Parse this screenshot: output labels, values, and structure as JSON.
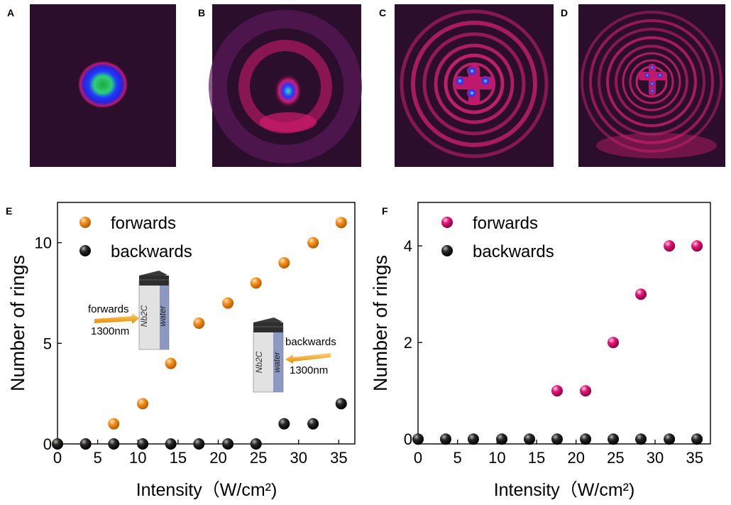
{
  "panels": {
    "A": {
      "label": "A"
    },
    "B": {
      "label": "B"
    },
    "C": {
      "label": "C"
    },
    "D": {
      "label": "D"
    }
  },
  "colors": {
    "forwards_E": "#f7931e",
    "backwards": "#1a1a1a",
    "forwards_F": "#e5197a",
    "beam_bg": "#2a0e2c"
  },
  "insets": {
    "forward": {
      "material": "Nb2C",
      "liquid": "water",
      "direction": "forwards",
      "wavelength": "1300nm"
    },
    "backward": {
      "material": "Nb2C",
      "liquid": "water",
      "direction": "backwards",
      "wavelength": "1300nm"
    }
  },
  "chart_data": [
    {
      "panel": "E",
      "type": "scatter",
      "xlabel": "Intensity（W/cm²)",
      "ylabel": "Number of rings",
      "xlim": [
        0,
        37
      ],
      "ylim": [
        0,
        12
      ],
      "xticks": [
        0,
        5,
        10,
        15,
        20,
        25,
        30,
        35
      ],
      "yticks": [
        0,
        5,
        10
      ],
      "legend": "top-left",
      "series": [
        {
          "name": "forwards",
          "color": "#f7931e",
          "x": [
            0,
            3.5,
            7,
            10.6,
            14.1,
            17.6,
            21.2,
            24.7,
            28.2,
            31.8,
            35.3
          ],
          "y": [
            0,
            0,
            1,
            2,
            4,
            6,
            7,
            8,
            9,
            10,
            11
          ]
        },
        {
          "name": "backwards",
          "color": "#1a1a1a",
          "x": [
            0,
            3.5,
            7,
            10.6,
            14.1,
            17.6,
            21.2,
            24.7,
            28.2,
            31.8,
            35.3
          ],
          "y": [
            0,
            0,
            0,
            0,
            0,
            0,
            0,
            0,
            1,
            1,
            2
          ]
        }
      ]
    },
    {
      "panel": "F",
      "type": "scatter",
      "xlabel": "Intensity（W/cm²)",
      "ylabel": "Number of rings",
      "xlim": [
        0,
        37
      ],
      "ylim": [
        -0.1,
        4.9
      ],
      "xticks": [
        0,
        5,
        10,
        15,
        20,
        25,
        30,
        35
      ],
      "yticks": [
        0,
        2,
        4
      ],
      "legend": "top-left",
      "series": [
        {
          "name": "forwards",
          "color": "#e5197a",
          "x": [
            17.6,
            21.2,
            24.7,
            28.2,
            31.8,
            35.3
          ],
          "y": [
            1,
            1,
            2,
            3,
            4,
            4
          ]
        },
        {
          "name": "backwards",
          "color": "#1a1a1a",
          "x": [
            0,
            3.5,
            7,
            10.6,
            14.1,
            17.6,
            21.2,
            24.7,
            28.2,
            31.8,
            35.3
          ],
          "y": [
            0,
            0,
            0,
            0,
            0,
            0,
            0,
            0,
            0,
            0,
            0
          ]
        }
      ]
    }
  ]
}
